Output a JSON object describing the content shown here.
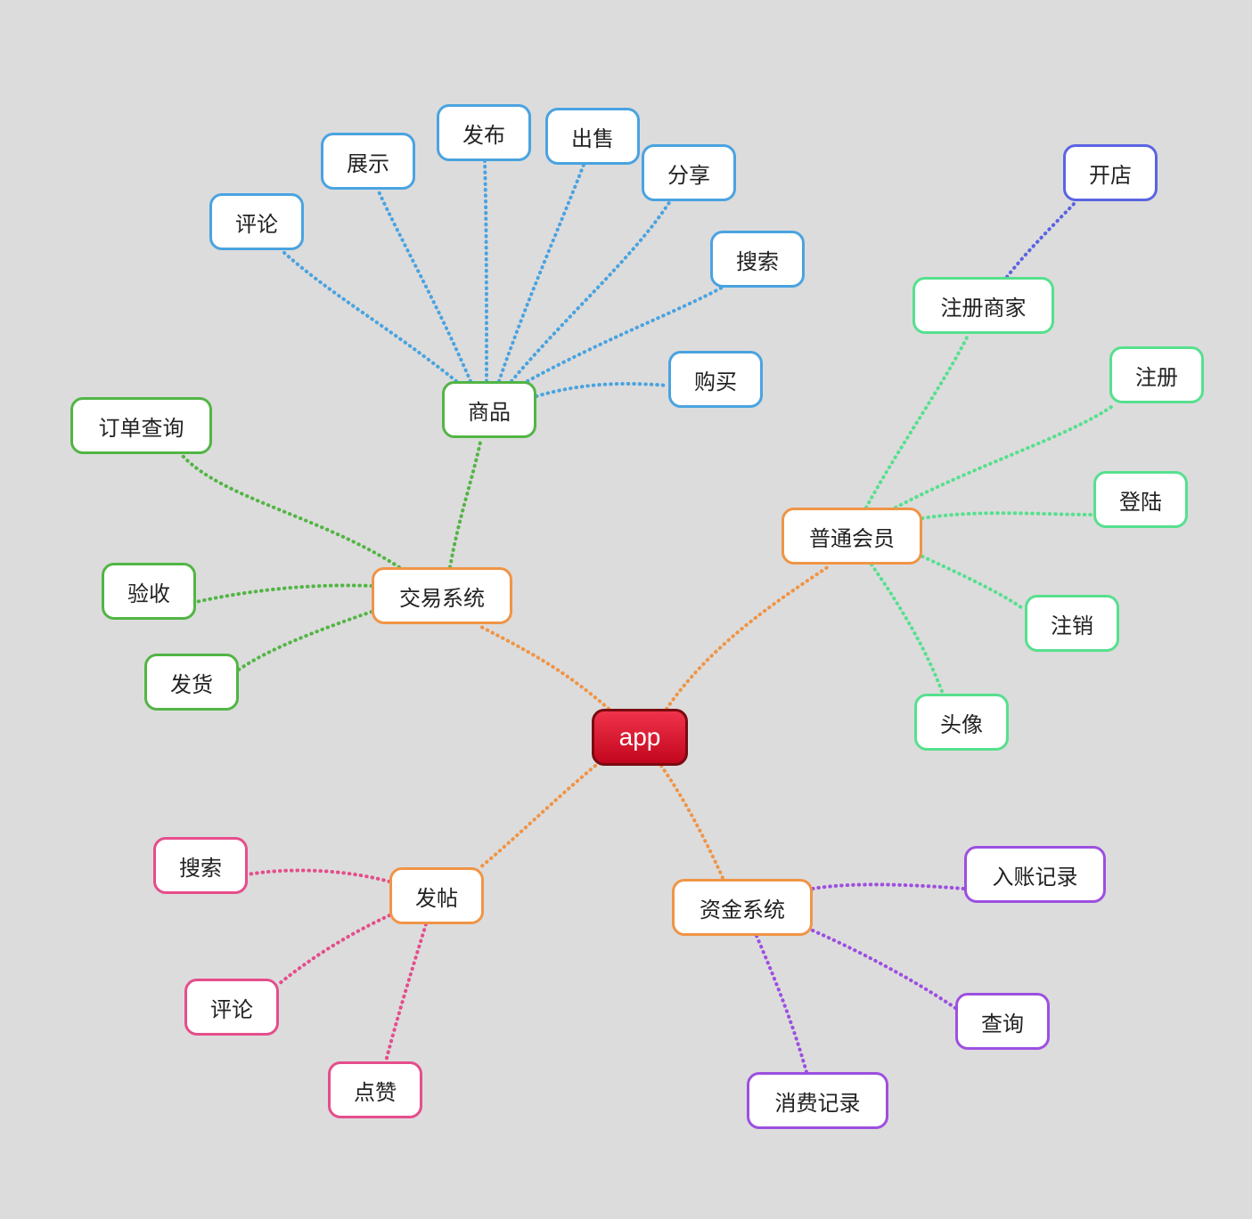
{
  "mindmap": {
    "root": "app",
    "nodes": {
      "trade": "交易系统",
      "goods": "商品",
      "g_comment": "评论",
      "g_display": "展示",
      "g_publish": "发布",
      "g_sell": "出售",
      "g_share": "分享",
      "g_search": "搜索",
      "g_buy": "购买",
      "order_query": "订单查询",
      "accept": "验收",
      "ship": "发货",
      "member": "普通会员",
      "reg_merchant": "注册商家",
      "open_shop": "开店",
      "register": "注册",
      "login": "登陆",
      "logout": "注销",
      "avatar": "头像",
      "post": "发帖",
      "p_search": "搜索",
      "p_comment": "评论",
      "p_like": "点赞",
      "funds": "资金系统",
      "income": "入账记录",
      "f_query": "查询",
      "expense": "消费记录"
    }
  },
  "colors": {
    "orange": "#f09446",
    "green": "#52b544",
    "blue": "#4aa3e0",
    "mint": "#56e08e",
    "indigo": "#5a64e2",
    "pink": "#e54d8b",
    "purple": "#9d4fe0",
    "background": "#dcdcdc"
  }
}
